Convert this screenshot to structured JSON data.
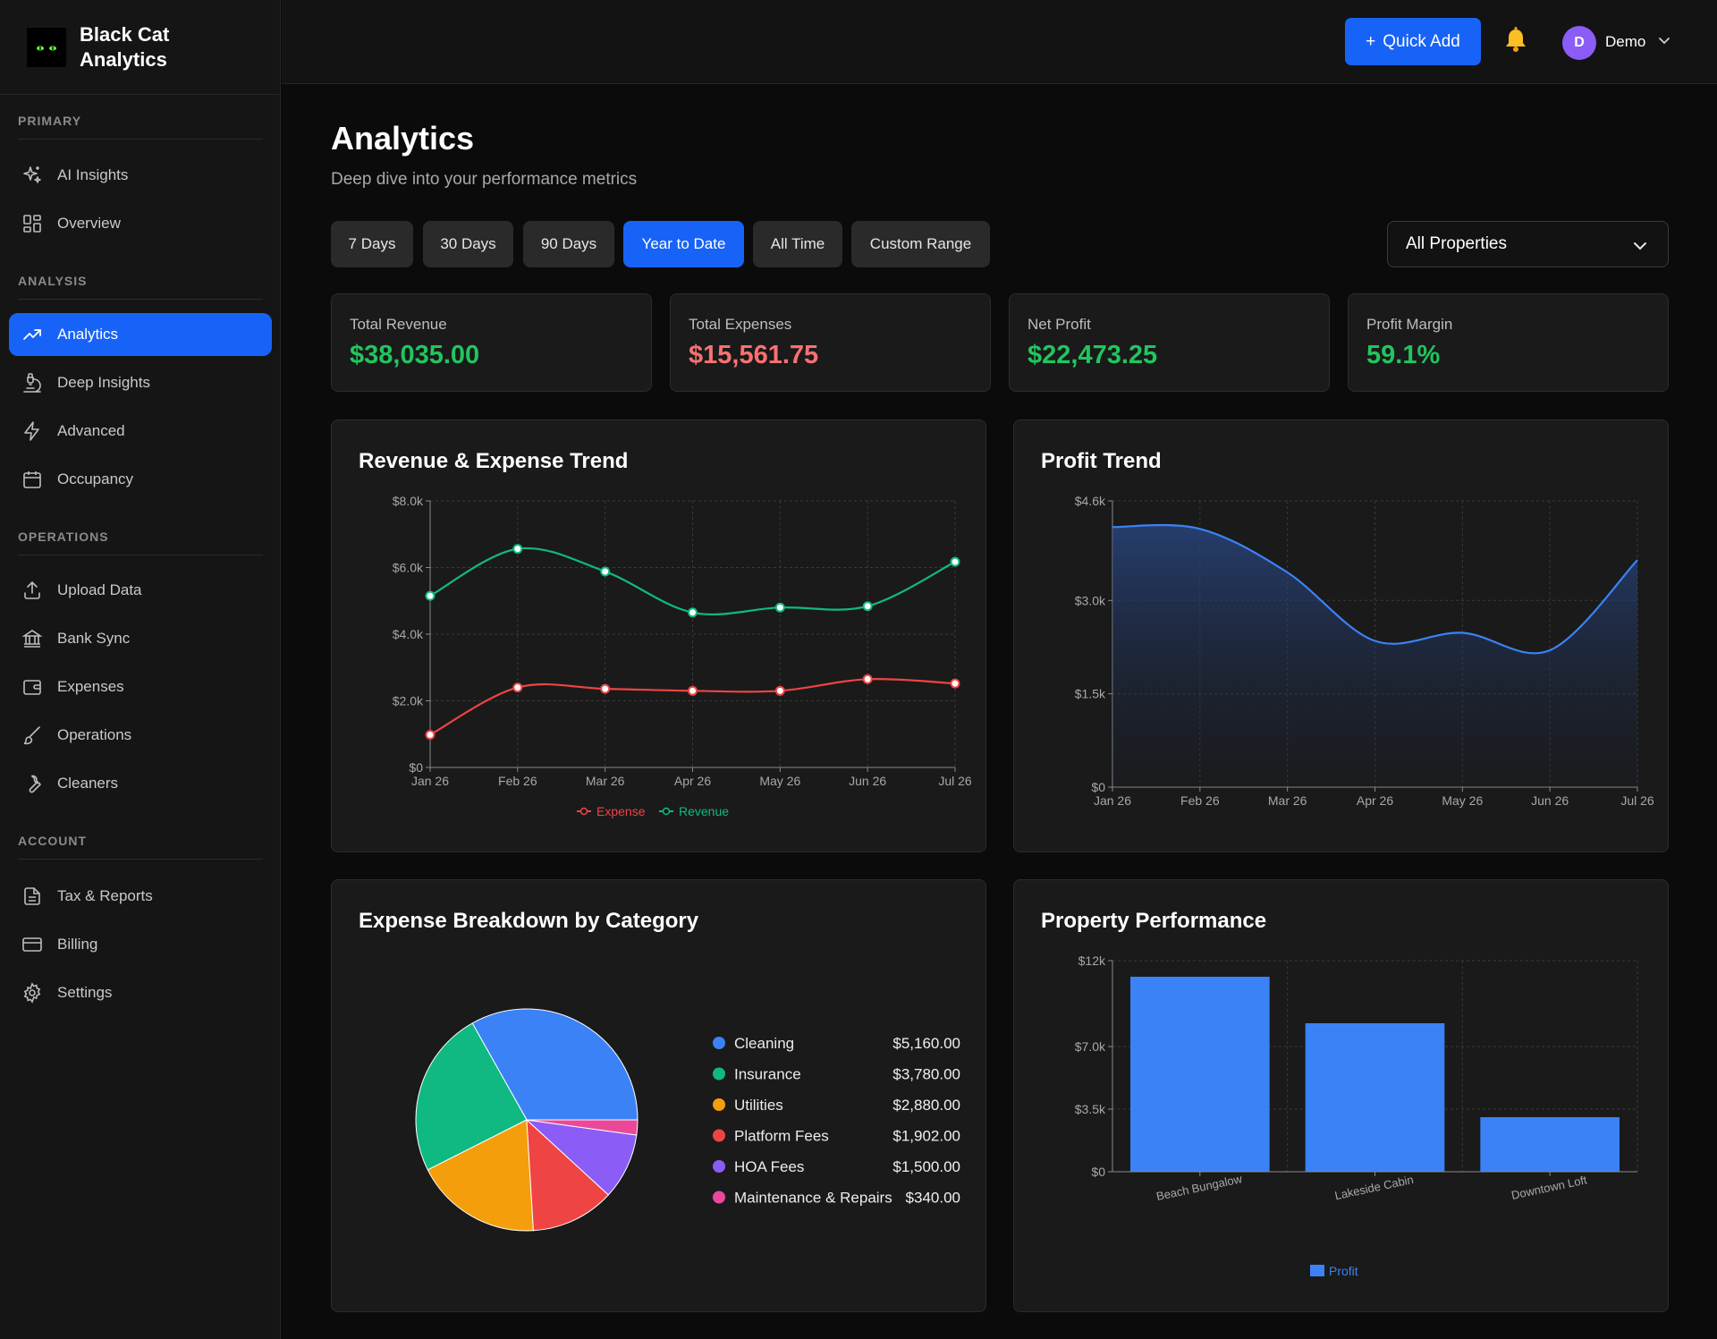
{
  "brand": {
    "title": "Black Cat Analytics",
    "title_line1": "Black Cat",
    "title_line2": "Analytics"
  },
  "sidebar": {
    "sections": [
      {
        "label": "PRIMARY"
      },
      {
        "label": "ANALYSIS"
      },
      {
        "label": "OPERATIONS"
      },
      {
        "label": "ACCOUNT"
      }
    ],
    "items": [
      {
        "label": "AI Insights",
        "icon": "sparkles-icon"
      },
      {
        "label": "Overview",
        "icon": "grid-icon"
      },
      {
        "label": "Analytics",
        "icon": "trending-up-icon",
        "active": true
      },
      {
        "label": "Deep Insights",
        "icon": "microscope-icon"
      },
      {
        "label": "Advanced",
        "icon": "lightning-icon"
      },
      {
        "label": "Occupancy",
        "icon": "calendar-icon"
      },
      {
        "label": "Upload Data",
        "icon": "upload-icon"
      },
      {
        "label": "Bank Sync",
        "icon": "bank-icon"
      },
      {
        "label": "Expenses",
        "icon": "wallet-icon"
      },
      {
        "label": "Operations",
        "icon": "brush-icon"
      },
      {
        "label": "Cleaners",
        "icon": "wrench-icon"
      },
      {
        "label": "Tax & Reports",
        "icon": "document-icon"
      },
      {
        "label": "Billing",
        "icon": "credit-card-icon"
      },
      {
        "label": "Settings",
        "icon": "gear-icon"
      }
    ]
  },
  "topbar": {
    "quick_add": "Quick Add",
    "quick_add_plus": "+",
    "user": {
      "initial": "D",
      "name": "Demo"
    }
  },
  "page": {
    "title": "Analytics",
    "subtitle": "Deep dive into your performance metrics",
    "filters": [
      {
        "label": "7 Days"
      },
      {
        "label": "30 Days"
      },
      {
        "label": "90 Days"
      },
      {
        "label": "Year to Date",
        "active": true
      },
      {
        "label": "All Time"
      },
      {
        "label": "Custom Range"
      }
    ],
    "property_select": "All Properties"
  },
  "kpis": [
    {
      "label": "Total Revenue",
      "value": "$38,035.00",
      "color": "#22c55e"
    },
    {
      "label": "Total Expenses",
      "value": "$15,561.75",
      "color": "#f87171"
    },
    {
      "label": "Net Profit",
      "value": "$22,473.25",
      "color": "#22c55e"
    },
    {
      "label": "Profit Margin",
      "value": "59.1%",
      "color": "#22c55e"
    }
  ],
  "colors": {
    "accent": "#1863f7",
    "revenue": "#10b981",
    "expense": "#ef4444",
    "profit": "#3b82f6"
  },
  "chart_data": [
    {
      "type": "line",
      "title": "Revenue & Expense Trend",
      "categories": [
        "Jan 26",
        "Feb 26",
        "Mar 26",
        "Apr 26",
        "May 26",
        "Jun 26",
        "Jul 26"
      ],
      "y_ticks": [
        "$0",
        "$2.0k",
        "$4.0k",
        "$6.0k",
        "$8.0k"
      ],
      "ylim": [
        0,
        8000
      ],
      "grid": true,
      "legend_position": "bottom",
      "series": [
        {
          "name": "Expense",
          "color": "#ef4444",
          "values": [
            980,
            2400,
            2360,
            2300,
            2300,
            2650,
            2520
          ]
        },
        {
          "name": "Revenue",
          "color": "#10b981",
          "values": [
            5150,
            6560,
            5880,
            4650,
            4800,
            4840,
            6170
          ]
        }
      ]
    },
    {
      "type": "area",
      "title": "Profit Trend",
      "categories": [
        "Jan 26",
        "Feb 26",
        "Mar 26",
        "Apr 26",
        "May 26",
        "Jun 26",
        "Jul 26"
      ],
      "y_ticks": [
        "$0",
        "$1.5k",
        "$3.0k",
        "$4.6k"
      ],
      "ylim": [
        0,
        4600
      ],
      "grid": true,
      "series": [
        {
          "name": "Profit",
          "color": "#3b82f6",
          "values": [
            4180,
            4150,
            3450,
            2350,
            2480,
            2200,
            3650
          ]
        }
      ]
    },
    {
      "type": "pie",
      "title": "Expense Breakdown by Category",
      "legend_position": "right",
      "slices": [
        {
          "label": "Cleaning",
          "value": 5160.0,
          "display": "$5,160.00",
          "color": "#3b82f6"
        },
        {
          "label": "Insurance",
          "value": 3780.0,
          "display": "$3,780.00",
          "color": "#10b981"
        },
        {
          "label": "Utilities",
          "value": 2880.0,
          "display": "$2,880.00",
          "color": "#f59e0b"
        },
        {
          "label": "Platform Fees",
          "value": 1902.0,
          "display": "$1,902.00",
          "color": "#ef4444"
        },
        {
          "label": "HOA Fees",
          "value": 1500.0,
          "display": "$1,500.00",
          "color": "#8b5cf6"
        },
        {
          "label": "Maintenance & Repairs",
          "value": 340.0,
          "display": "$340.00",
          "color": "#ec4899"
        }
      ]
    },
    {
      "type": "bar",
      "title": "Property Performance",
      "categories": [
        "Beach Bungalow",
        "Lakeside Cabin",
        "Downtown Loft"
      ],
      "y_ticks": [
        "$0",
        "$3.5k",
        "$7.0k",
        "$12k"
      ],
      "ylim": [
        0,
        11800
      ],
      "grid": true,
      "legend_position": "bottom",
      "series": [
        {
          "name": "Profit",
          "color": "#3b82f6",
          "values": [
            10900,
            8300,
            3050
          ]
        }
      ]
    }
  ]
}
